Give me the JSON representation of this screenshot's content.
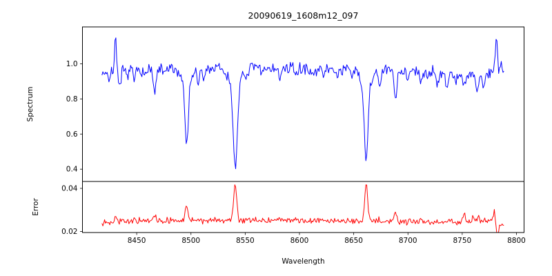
{
  "figure": {
    "title": "20090619_1608m12_097",
    "background": "#ffffff",
    "frame_color": "#000000"
  },
  "chart_data": [
    {
      "type": "line",
      "panel": "spectrum",
      "title": "20090619_1608m12_097",
      "ylabel": "Spectrum",
      "line_color": "#0000ff",
      "xlim": [
        8400,
        8807
      ],
      "ylim": [
        0.33,
        1.21
      ],
      "ytick_values": [
        0.4,
        0.6,
        0.8,
        1.0
      ],
      "ytick_labels": [
        "0.4",
        "0.6",
        "0.8",
        "1.0"
      ],
      "x_start": 8418,
      "x_end": 8789,
      "x_step": 0.8,
      "noise_amplitude": 0.033,
      "noise_seed": 7,
      "continuum": [
        [
          8418,
          0.95
        ],
        [
          8432,
          0.962
        ],
        [
          8450,
          0.966
        ],
        [
          8470,
          0.967
        ],
        [
          8500,
          0.97
        ],
        [
          8530,
          0.973
        ],
        [
          8560,
          0.976
        ],
        [
          8590,
          0.973
        ],
        [
          8620,
          0.972
        ],
        [
          8650,
          0.968
        ],
        [
          8680,
          0.963
        ],
        [
          8705,
          0.958
        ],
        [
          8725,
          0.952
        ],
        [
          8745,
          0.944
        ],
        [
          8760,
          0.93
        ],
        [
          8768,
          0.928
        ],
        [
          8774,
          0.945
        ],
        [
          8780,
          0.962
        ],
        [
          8789,
          0.965
        ]
      ],
      "features": [
        {
          "center": 8425.0,
          "amplitude": -0.05,
          "sigma": 1.0
        },
        {
          "center": 8430.5,
          "amplitude": 0.19,
          "sigma": 0.9
        },
        {
          "center": 8434.5,
          "amplitude": -0.11,
          "sigma": 1.1
        },
        {
          "center": 8441.0,
          "amplitude": -0.04,
          "sigma": 1.0
        },
        {
          "center": 8448.0,
          "amplitude": -0.06,
          "sigma": 1.1
        },
        {
          "center": 8458.0,
          "amplitude": -0.04,
          "sigma": 1.0
        },
        {
          "center": 8466.5,
          "amplitude": -0.15,
          "sigma": 1.2
        },
        {
          "center": 8475.0,
          "amplitude": -0.03,
          "sigma": 1.0
        },
        {
          "center": 8496.0,
          "amplitude": -0.33,
          "sigma": 1.5
        },
        {
          "center": 8496.0,
          "amplitude": -0.09,
          "sigma": 4.0
        },
        {
          "center": 8506.5,
          "amplitude": -0.09,
          "sigma": 1.1
        },
        {
          "center": 8512.0,
          "amplitude": -0.07,
          "sigma": 1.0
        },
        {
          "center": 8540.8,
          "amplitude": -0.44,
          "sigma": 1.7
        },
        {
          "center": 8540.8,
          "amplitude": -0.13,
          "sigma": 5.0
        },
        {
          "center": 8551.0,
          "amplitude": -0.04,
          "sigma": 1.0
        },
        {
          "center": 8565.0,
          "amplitude": -0.03,
          "sigma": 1.0
        },
        {
          "center": 8582.0,
          "amplitude": -0.06,
          "sigma": 1.3
        },
        {
          "center": 8598.0,
          "amplitude": -0.04,
          "sigma": 1.0
        },
        {
          "center": 8611.0,
          "amplitude": -0.05,
          "sigma": 1.0
        },
        {
          "center": 8622.0,
          "amplitude": -0.06,
          "sigma": 1.0
        },
        {
          "center": 8635.0,
          "amplitude": -0.05,
          "sigma": 1.0
        },
        {
          "center": 8648.0,
          "amplitude": -0.05,
          "sigma": 1.0
        },
        {
          "center": 8661.5,
          "amplitude": -0.4,
          "sigma": 1.6
        },
        {
          "center": 8661.5,
          "amplitude": -0.12,
          "sigma": 4.5
        },
        {
          "center": 8674.0,
          "amplitude": -0.08,
          "sigma": 1.2
        },
        {
          "center": 8688.5,
          "amplitude": -0.16,
          "sigma": 1.3
        },
        {
          "center": 8700.0,
          "amplitude": -0.04,
          "sigma": 1.0
        },
        {
          "center": 8712.0,
          "amplitude": -0.08,
          "sigma": 1.2
        },
        {
          "center": 8727.0,
          "amplitude": -0.06,
          "sigma": 1.0
        },
        {
          "center": 8736.0,
          "amplitude": -0.09,
          "sigma": 1.1
        },
        {
          "center": 8744.0,
          "amplitude": -0.05,
          "sigma": 1.0
        },
        {
          "center": 8752.0,
          "amplitude": -0.07,
          "sigma": 1.1
        },
        {
          "center": 8764.0,
          "amplitude": -0.08,
          "sigma": 1.1
        },
        {
          "center": 8770.0,
          "amplitude": -0.06,
          "sigma": 1.0
        },
        {
          "center": 8781.5,
          "amplitude": 0.2,
          "sigma": 0.9
        },
        {
          "center": 8785.5,
          "amplitude": 0.06,
          "sigma": 0.8
        }
      ]
    },
    {
      "type": "line",
      "panel": "error",
      "ylabel": "Error",
      "xlabel": "Wavelength",
      "line_color": "#ff0000",
      "xlim": [
        8400,
        8807
      ],
      "ylim": [
        0.0195,
        0.0432
      ],
      "ytick_values": [
        0.02,
        0.04
      ],
      "ytick_labels": [
        "0.02",
        "0.04"
      ],
      "xtick_values": [
        8450,
        8500,
        8550,
        8600,
        8650,
        8700,
        8750,
        8800
      ],
      "xtick_labels": [
        "8450",
        "8500",
        "8550",
        "8600",
        "8650",
        "8700",
        "8750",
        "8800"
      ],
      "x_start": 8418,
      "x_end": 8789,
      "x_step": 0.8,
      "noise_amplitude": 0.0013,
      "noise_seed": 13,
      "continuum": [
        [
          8418,
          0.0244
        ],
        [
          8440,
          0.0247
        ],
        [
          8470,
          0.0249
        ],
        [
          8500,
          0.025
        ],
        [
          8540,
          0.0252
        ],
        [
          8580,
          0.0251
        ],
        [
          8620,
          0.0249
        ],
        [
          8660,
          0.0249
        ],
        [
          8700,
          0.0246
        ],
        [
          8730,
          0.0244
        ],
        [
          8755,
          0.0246
        ],
        [
          8770,
          0.0248
        ],
        [
          8779,
          0.025
        ],
        [
          8782,
          0.0222
        ],
        [
          8785,
          0.0226
        ],
        [
          8789,
          0.0238
        ]
      ],
      "features": [
        {
          "center": 8430.5,
          "amplitude": 0.003,
          "sigma": 1.0
        },
        {
          "center": 8448.0,
          "amplitude": 0.0008,
          "sigma": 1.0
        },
        {
          "center": 8466.5,
          "amplitude": 0.0028,
          "sigma": 1.1
        },
        {
          "center": 8496.0,
          "amplitude": 0.0078,
          "sigma": 1.2
        },
        {
          "center": 8506.5,
          "amplitude": 0.001,
          "sigma": 1.0
        },
        {
          "center": 8540.8,
          "amplitude": 0.017,
          "sigma": 1.4
        },
        {
          "center": 8551.0,
          "amplitude": 0.0008,
          "sigma": 1.0
        },
        {
          "center": 8582.0,
          "amplitude": 0.001,
          "sigma": 1.0
        },
        {
          "center": 8622.0,
          "amplitude": 0.0006,
          "sigma": 1.0
        },
        {
          "center": 8661.5,
          "amplitude": 0.0172,
          "sigma": 1.3
        },
        {
          "center": 8674.0,
          "amplitude": 0.001,
          "sigma": 1.0
        },
        {
          "center": 8688.5,
          "amplitude": 0.0045,
          "sigma": 1.1
        },
        {
          "center": 8712.0,
          "amplitude": 0.0008,
          "sigma": 1.0
        },
        {
          "center": 8736.0,
          "amplitude": 0.001,
          "sigma": 1.0
        },
        {
          "center": 8752.0,
          "amplitude": 0.003,
          "sigma": 1.1
        },
        {
          "center": 8760.0,
          "amplitude": 0.0024,
          "sigma": 0.9
        },
        {
          "center": 8765.0,
          "amplitude": 0.0022,
          "sigma": 0.9
        },
        {
          "center": 8779.5,
          "amplitude": 0.0048,
          "sigma": 0.8
        },
        {
          "center": 8782.5,
          "amplitude": -0.0035,
          "sigma": 0.9
        }
      ]
    }
  ]
}
